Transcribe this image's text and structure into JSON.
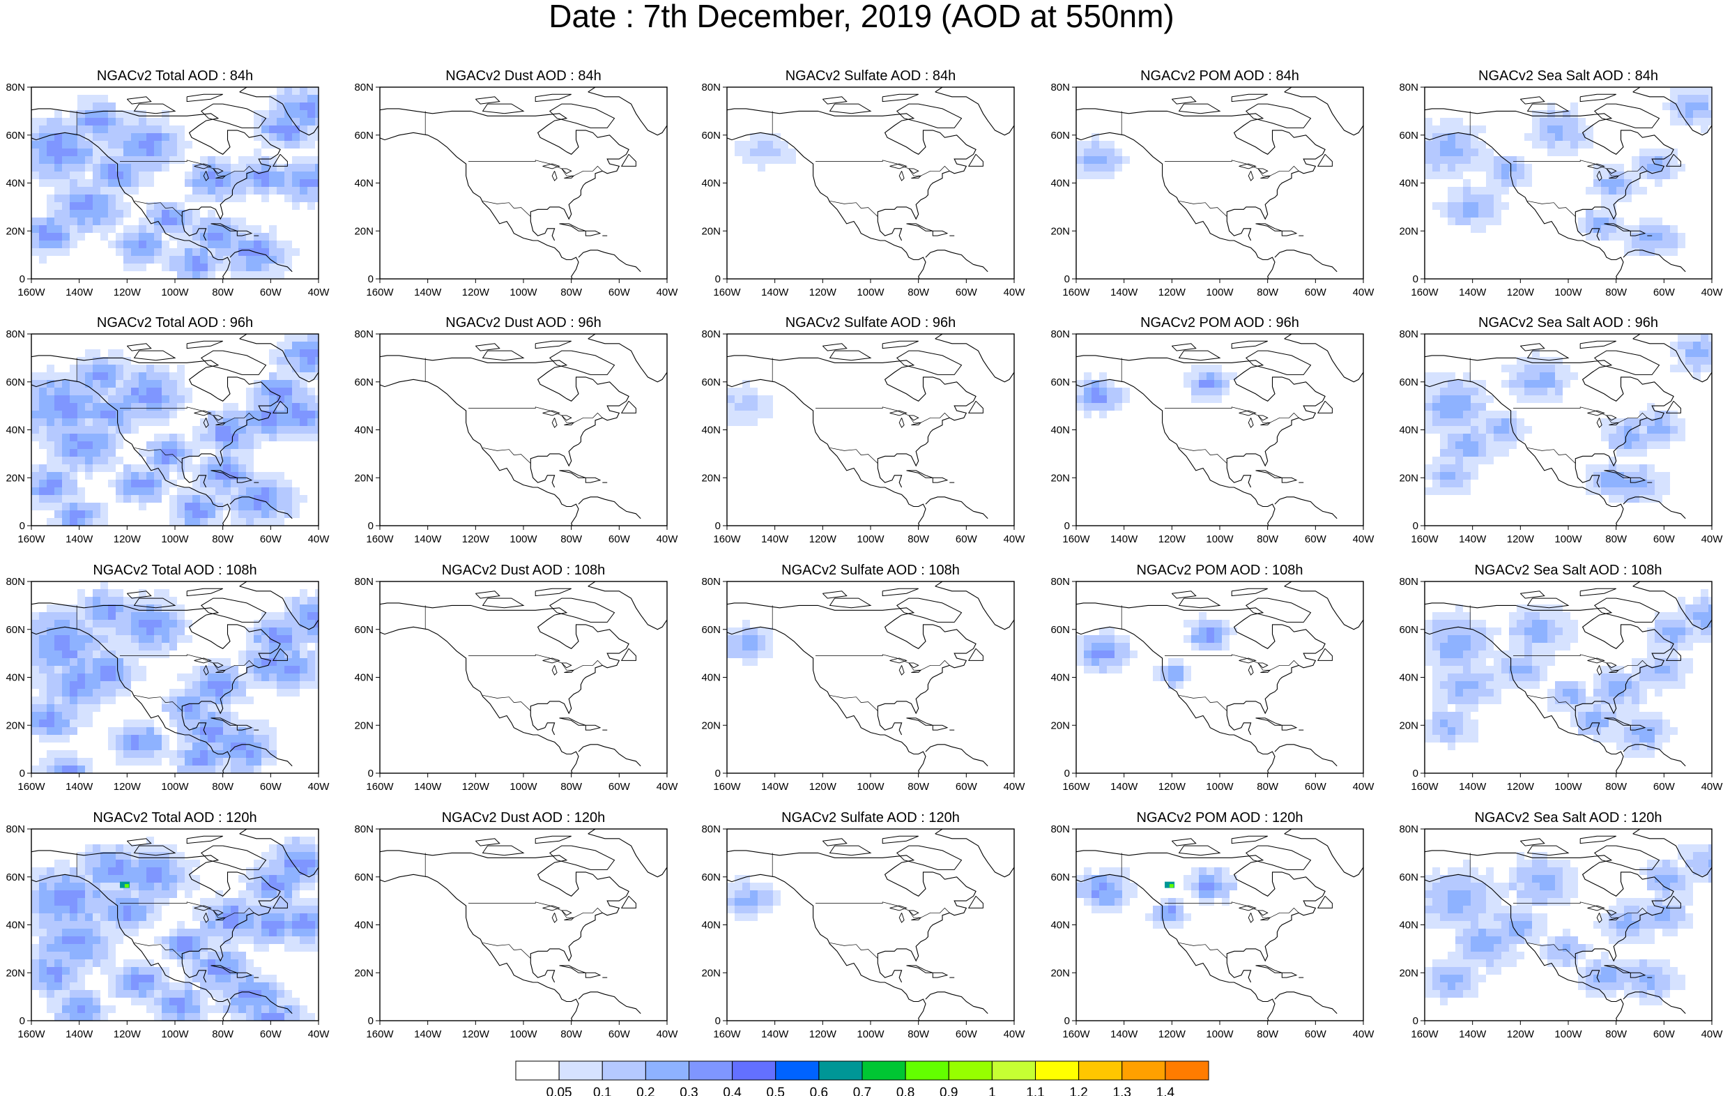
{
  "figure": {
    "title": "Date : 7th December, 2019 (AOD at 550nm)"
  },
  "colors": {
    "land_outline": "#000000",
    "frame": "#000000",
    "background": "#ffffff"
  },
  "chart_data": [
    {
      "type": "heatmap",
      "row": 0,
      "col": 0,
      "title": "NGACv2 Total AOD : 84h",
      "variable": "Total AOD",
      "forecast_hour": "84h",
      "xlim": [
        -160,
        -40
      ],
      "ylim": [
        0,
        80
      ],
      "coverage": 0.55,
      "max_level": "0.3",
      "x_ticks": [
        "160W",
        "140W",
        "120W",
        "100W",
        "80W",
        "60W",
        "40W"
      ],
      "y_ticks": [
        "0",
        "20N",
        "40N",
        "60N",
        "80N"
      ]
    },
    {
      "type": "heatmap",
      "row": 0,
      "col": 1,
      "title": "NGACv2 Dust AOD : 84h",
      "variable": "Dust AOD",
      "forecast_hour": "84h",
      "xlim": [
        -160,
        -40
      ],
      "ylim": [
        0,
        80
      ],
      "coverage": 0.0,
      "max_level": "0.05",
      "x_ticks": [
        "160W",
        "140W",
        "120W",
        "100W",
        "80W",
        "60W",
        "40W"
      ],
      "y_ticks": [
        "0",
        "20N",
        "40N",
        "60N",
        "80N"
      ]
    },
    {
      "type": "heatmap",
      "row": 0,
      "col": 2,
      "title": "NGACv2 Sulfate AOD : 84h",
      "variable": "Sulfate AOD",
      "forecast_hour": "84h",
      "xlim": [
        -160,
        -40
      ],
      "ylim": [
        0,
        80
      ],
      "coverage": 0.01,
      "max_level": "0.1",
      "x_ticks": [
        "160W",
        "140W",
        "120W",
        "100W",
        "80W",
        "60W",
        "40W"
      ],
      "y_ticks": [
        "0",
        "20N",
        "40N",
        "60N",
        "80N"
      ]
    },
    {
      "type": "heatmap",
      "row": 0,
      "col": 3,
      "title": "NGACv2 POM AOD : 84h",
      "variable": "POM AOD",
      "forecast_hour": "84h",
      "xlim": [
        -160,
        -40
      ],
      "ylim": [
        0,
        80
      ],
      "coverage": 0.05,
      "max_level": "0.2",
      "x_ticks": [
        "160W",
        "140W",
        "120W",
        "100W",
        "80W",
        "60W",
        "40W"
      ],
      "y_ticks": [
        "0",
        "20N",
        "40N",
        "60N",
        "80N"
      ]
    },
    {
      "type": "heatmap",
      "row": 0,
      "col": 4,
      "title": "NGACv2 Sea Salt AOD : 84h",
      "variable": "Sea Salt AOD",
      "forecast_hour": "84h",
      "xlim": [
        -160,
        -40
      ],
      "ylim": [
        0,
        80
      ],
      "coverage": 0.3,
      "max_level": "0.2",
      "x_ticks": [
        "160W",
        "140W",
        "120W",
        "100W",
        "80W",
        "60W",
        "40W"
      ],
      "y_ticks": [
        "0",
        "20N",
        "40N",
        "60N",
        "80N"
      ]
    },
    {
      "type": "heatmap",
      "row": 1,
      "col": 0,
      "title": "NGACv2 Total AOD : 96h",
      "variable": "Total AOD",
      "forecast_hour": "96h",
      "xlim": [
        -160,
        -40
      ],
      "ylim": [
        0,
        80
      ],
      "coverage": 0.58,
      "max_level": "0.4",
      "x_ticks": [
        "160W",
        "140W",
        "120W",
        "100W",
        "80W",
        "60W",
        "40W"
      ],
      "y_ticks": [
        "0",
        "20N",
        "40N",
        "60N",
        "80N"
      ]
    },
    {
      "type": "heatmap",
      "row": 1,
      "col": 1,
      "title": "NGACv2 Dust AOD : 96h",
      "variable": "Dust AOD",
      "forecast_hour": "96h",
      "xlim": [
        -160,
        -40
      ],
      "ylim": [
        0,
        80
      ],
      "coverage": 0.0,
      "max_level": "0.05",
      "x_ticks": [
        "160W",
        "140W",
        "120W",
        "100W",
        "80W",
        "60W",
        "40W"
      ],
      "y_ticks": [
        "0",
        "20N",
        "40N",
        "60N",
        "80N"
      ]
    },
    {
      "type": "heatmap",
      "row": 1,
      "col": 2,
      "title": "NGACv2 Sulfate AOD : 96h",
      "variable": "Sulfate AOD",
      "forecast_hour": "96h",
      "xlim": [
        -160,
        -40
      ],
      "ylim": [
        0,
        80
      ],
      "coverage": 0.02,
      "max_level": "0.1",
      "x_ticks": [
        "160W",
        "140W",
        "120W",
        "100W",
        "80W",
        "60W",
        "40W"
      ],
      "y_ticks": [
        "0",
        "20N",
        "40N",
        "60N",
        "80N"
      ]
    },
    {
      "type": "heatmap",
      "row": 1,
      "col": 3,
      "title": "NGACv2 POM AOD : 96h",
      "variable": "POM AOD",
      "forecast_hour": "96h",
      "xlim": [
        -160,
        -40
      ],
      "ylim": [
        0,
        80
      ],
      "coverage": 0.07,
      "max_level": "0.4",
      "x_ticks": [
        "160W",
        "140W",
        "120W",
        "100W",
        "80W",
        "60W",
        "40W"
      ],
      "y_ticks": [
        "0",
        "20N",
        "40N",
        "60N",
        "80N"
      ]
    },
    {
      "type": "heatmap",
      "row": 1,
      "col": 4,
      "title": "NGACv2 Sea Salt AOD : 96h",
      "variable": "Sea Salt AOD",
      "forecast_hour": "96h",
      "xlim": [
        -160,
        -40
      ],
      "ylim": [
        0,
        80
      ],
      "coverage": 0.35,
      "max_level": "0.2",
      "x_ticks": [
        "160W",
        "140W",
        "120W",
        "100W",
        "80W",
        "60W",
        "40W"
      ],
      "y_ticks": [
        "0",
        "20N",
        "40N",
        "60N",
        "80N"
      ]
    },
    {
      "type": "heatmap",
      "row": 2,
      "col": 0,
      "title": "NGACv2 Total AOD : 108h",
      "variable": "Total AOD",
      "forecast_hour": "108h",
      "xlim": [
        -160,
        -40
      ],
      "ylim": [
        0,
        80
      ],
      "coverage": 0.6,
      "max_level": "0.3",
      "x_ticks": [
        "160W",
        "140W",
        "120W",
        "100W",
        "80W",
        "60W",
        "40W"
      ],
      "y_ticks": [
        "0",
        "20N",
        "40N",
        "60N",
        "80N"
      ]
    },
    {
      "type": "heatmap",
      "row": 2,
      "col": 1,
      "title": "NGACv2 Dust AOD : 108h",
      "variable": "Dust AOD",
      "forecast_hour": "108h",
      "xlim": [
        -160,
        -40
      ],
      "ylim": [
        0,
        80
      ],
      "coverage": 0.0,
      "max_level": "0.05",
      "x_ticks": [
        "160W",
        "140W",
        "120W",
        "100W",
        "80W",
        "60W",
        "40W"
      ],
      "y_ticks": [
        "0",
        "20N",
        "40N",
        "60N",
        "80N"
      ]
    },
    {
      "type": "heatmap",
      "row": 2,
      "col": 2,
      "title": "NGACv2 Sulfate AOD : 108h",
      "variable": "Sulfate AOD",
      "forecast_hour": "108h",
      "xlim": [
        -160,
        -40
      ],
      "ylim": [
        0,
        80
      ],
      "coverage": 0.04,
      "max_level": "0.2",
      "x_ticks": [
        "160W",
        "140W",
        "120W",
        "100W",
        "80W",
        "60W",
        "40W"
      ],
      "y_ticks": [
        "0",
        "20N",
        "40N",
        "60N",
        "80N"
      ]
    },
    {
      "type": "heatmap",
      "row": 2,
      "col": 3,
      "title": "NGACv2 POM AOD : 108h",
      "variable": "POM AOD",
      "forecast_hour": "108h",
      "xlim": [
        -160,
        -40
      ],
      "ylim": [
        0,
        80
      ],
      "coverage": 0.09,
      "max_level": "0.3",
      "x_ticks": [
        "160W",
        "140W",
        "120W",
        "100W",
        "80W",
        "60W",
        "40W"
      ],
      "y_ticks": [
        "0",
        "20N",
        "40N",
        "60N",
        "80N"
      ]
    },
    {
      "type": "heatmap",
      "row": 2,
      "col": 4,
      "title": "NGACv2 Sea Salt AOD : 108h",
      "variable": "Sea Salt AOD",
      "forecast_hour": "108h",
      "xlim": [
        -160,
        -40
      ],
      "ylim": [
        0,
        80
      ],
      "coverage": 0.4,
      "max_level": "0.2",
      "x_ticks": [
        "160W",
        "140W",
        "120W",
        "100W",
        "80W",
        "60W",
        "40W"
      ],
      "y_ticks": [
        "0",
        "20N",
        "40N",
        "60N",
        "80N"
      ]
    },
    {
      "type": "heatmap",
      "row": 3,
      "col": 0,
      "title": "NGACv2 Total AOD : 120h",
      "variable": "Total AOD",
      "forecast_hour": "120h",
      "xlim": [
        -160,
        -40
      ],
      "ylim": [
        0,
        80
      ],
      "coverage": 0.62,
      "max_level": "0.7",
      "x_ticks": [
        "160W",
        "140W",
        "120W",
        "100W",
        "80W",
        "60W",
        "40W"
      ],
      "y_ticks": [
        "0",
        "20N",
        "40N",
        "60N",
        "80N"
      ]
    },
    {
      "type": "heatmap",
      "row": 3,
      "col": 1,
      "title": "NGACv2 Dust AOD : 120h",
      "variable": "Dust AOD",
      "forecast_hour": "120h",
      "xlim": [
        -160,
        -40
      ],
      "ylim": [
        0,
        80
      ],
      "coverage": 0.0,
      "max_level": "0.05",
      "x_ticks": [
        "160W",
        "140W",
        "120W",
        "100W",
        "80W",
        "60W",
        "40W"
      ],
      "y_ticks": [
        "0",
        "20N",
        "40N",
        "60N",
        "80N"
      ]
    },
    {
      "type": "heatmap",
      "row": 3,
      "col": 2,
      "title": "NGACv2 Sulfate AOD : 120h",
      "variable": "Sulfate AOD",
      "forecast_hour": "120h",
      "xlim": [
        -160,
        -40
      ],
      "ylim": [
        0,
        80
      ],
      "coverage": 0.05,
      "max_level": "0.2",
      "x_ticks": [
        "160W",
        "140W",
        "120W",
        "100W",
        "80W",
        "60W",
        "40W"
      ],
      "y_ticks": [
        "0",
        "20N",
        "40N",
        "60N",
        "80N"
      ]
    },
    {
      "type": "heatmap",
      "row": 3,
      "col": 3,
      "title": "NGACv2 POM AOD : 120h",
      "variable": "POM AOD",
      "forecast_hour": "120h",
      "xlim": [
        -160,
        -40
      ],
      "ylim": [
        0,
        80
      ],
      "coverage": 0.1,
      "max_level": "0.7",
      "x_ticks": [
        "160W",
        "140W",
        "120W",
        "100W",
        "80W",
        "60W",
        "40W"
      ],
      "y_ticks": [
        "0",
        "20N",
        "40N",
        "60N",
        "80N"
      ]
    },
    {
      "type": "heatmap",
      "row": 3,
      "col": 4,
      "title": "NGACv2 Sea Salt  AOD : 120h",
      "variable": "Sea Salt AOD",
      "forecast_hour": "120h",
      "xlim": [
        -160,
        -40
      ],
      "ylim": [
        0,
        80
      ],
      "coverage": 0.42,
      "max_level": "0.2",
      "x_ticks": [
        "160W",
        "140W",
        "120W",
        "100W",
        "80W",
        "60W",
        "40W"
      ],
      "y_ticks": [
        "0",
        "20N",
        "40N",
        "60N",
        "80N"
      ]
    }
  ],
  "colorbar": {
    "levels": [
      "0.05",
      "0.1",
      "0.2",
      "0.3",
      "0.4",
      "0.5",
      "0.6",
      "0.7",
      "0.8",
      "0.9",
      "1",
      "1.1",
      "1.2",
      "1.3",
      "1.4"
    ],
    "colors": [
      "#ffffff",
      "#d6e2ff",
      "#b5c9ff",
      "#8eb2ff",
      "#7f96ff",
      "#6370ff",
      "#0063ff",
      "#009696",
      "#00c633",
      "#63ff00",
      "#96ff00",
      "#c6ff33",
      "#ffff00",
      "#ffc600",
      "#ffa000",
      "#ff7c00",
      "#ff1900"
    ]
  }
}
